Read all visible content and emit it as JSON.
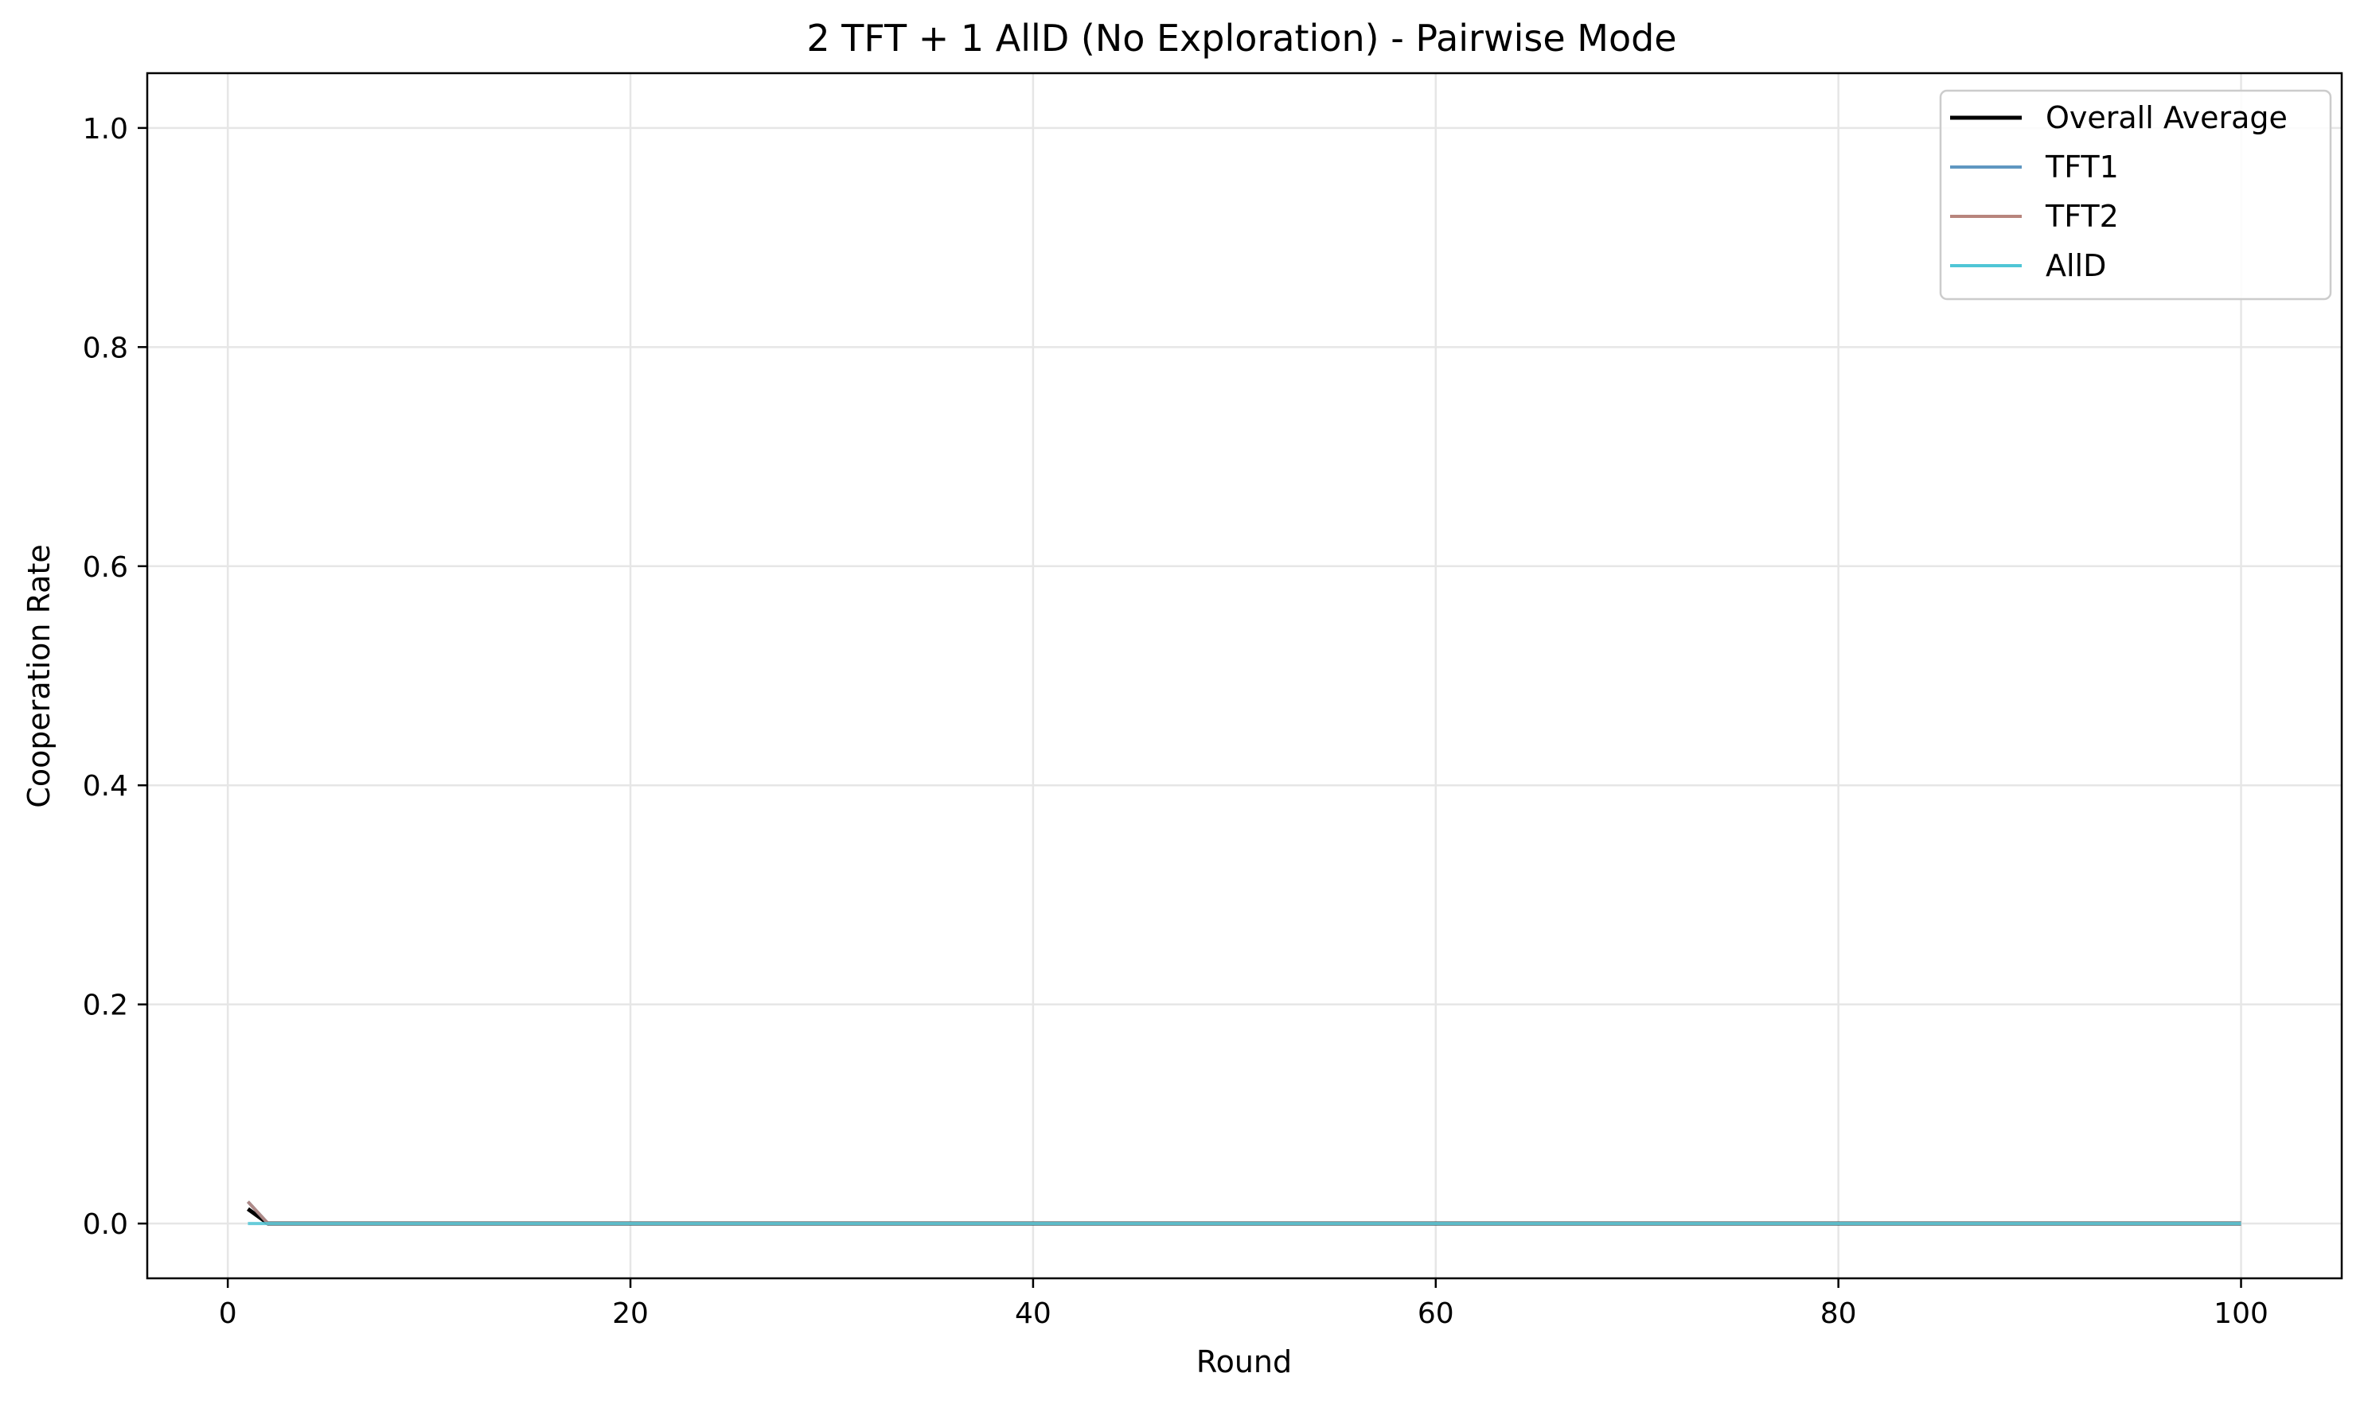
{
  "chart_data": {
    "type": "line",
    "title": "2 TFT + 1 AllD (No Exploration) - Pairwise Mode",
    "xlabel": "Round",
    "ylabel": "Cooperation Rate",
    "xlim": [
      -4,
      105
    ],
    "ylim": [
      -0.05,
      1.05
    ],
    "xticks": [
      0,
      20,
      40,
      60,
      80,
      100
    ],
    "yticks": [
      0.0,
      0.2,
      0.4,
      0.6,
      0.8,
      1.0
    ],
    "grid": true,
    "legend_position": "top-right",
    "series": [
      {
        "name": "Overall Average",
        "color": "#000000",
        "x": [
          1,
          2,
          100
        ],
        "y": [
          0.0133,
          0.0,
          0.0
        ]
      },
      {
        "name": "TFT1",
        "color": "#5f97c1",
        "x": [
          1,
          2,
          100
        ],
        "y": [
          0.02,
          0.0,
          0.0
        ]
      },
      {
        "name": "TFT2",
        "color": "#b8857d",
        "x": [
          1,
          2,
          100
        ],
        "y": [
          0.02,
          0.0,
          0.0
        ]
      },
      {
        "name": "AllD",
        "color": "#4fc6d6",
        "x": [
          1,
          2,
          100
        ],
        "y": [
          0.0,
          0.0,
          0.0
        ]
      }
    ]
  }
}
